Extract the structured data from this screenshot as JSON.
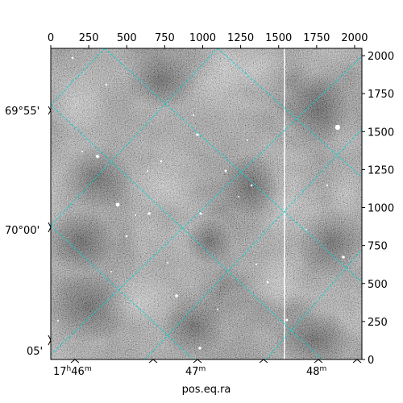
{
  "figure": {
    "xlabel": "pos.eq.ra",
    "pixel_x_ticks": [
      "0",
      "250",
      "500",
      "750",
      "1000",
      "1250",
      "1500",
      "1750",
      "2000"
    ],
    "pixel_y_ticks": [
      "0",
      "250",
      "500",
      "750",
      "1000",
      "1250",
      "1500",
      "1750",
      "2000"
    ],
    "dec_ticks": [
      "69°55'",
      "70°00'",
      "05'"
    ],
    "ra_ticks": [
      {
        "h": "17",
        "hsup": "h",
        "m": "46",
        "msup": "m"
      },
      {
        "h": "",
        "hsup": "",
        "m": "47",
        "msup": "m"
      },
      {
        "h": "",
        "hsup": "",
        "m": "48",
        "msup": "m"
      }
    ],
    "grid_color": "#00d5d5",
    "image_style": "grayscale astronomical image with noise, bright point sources and a vertical bright streak"
  }
}
